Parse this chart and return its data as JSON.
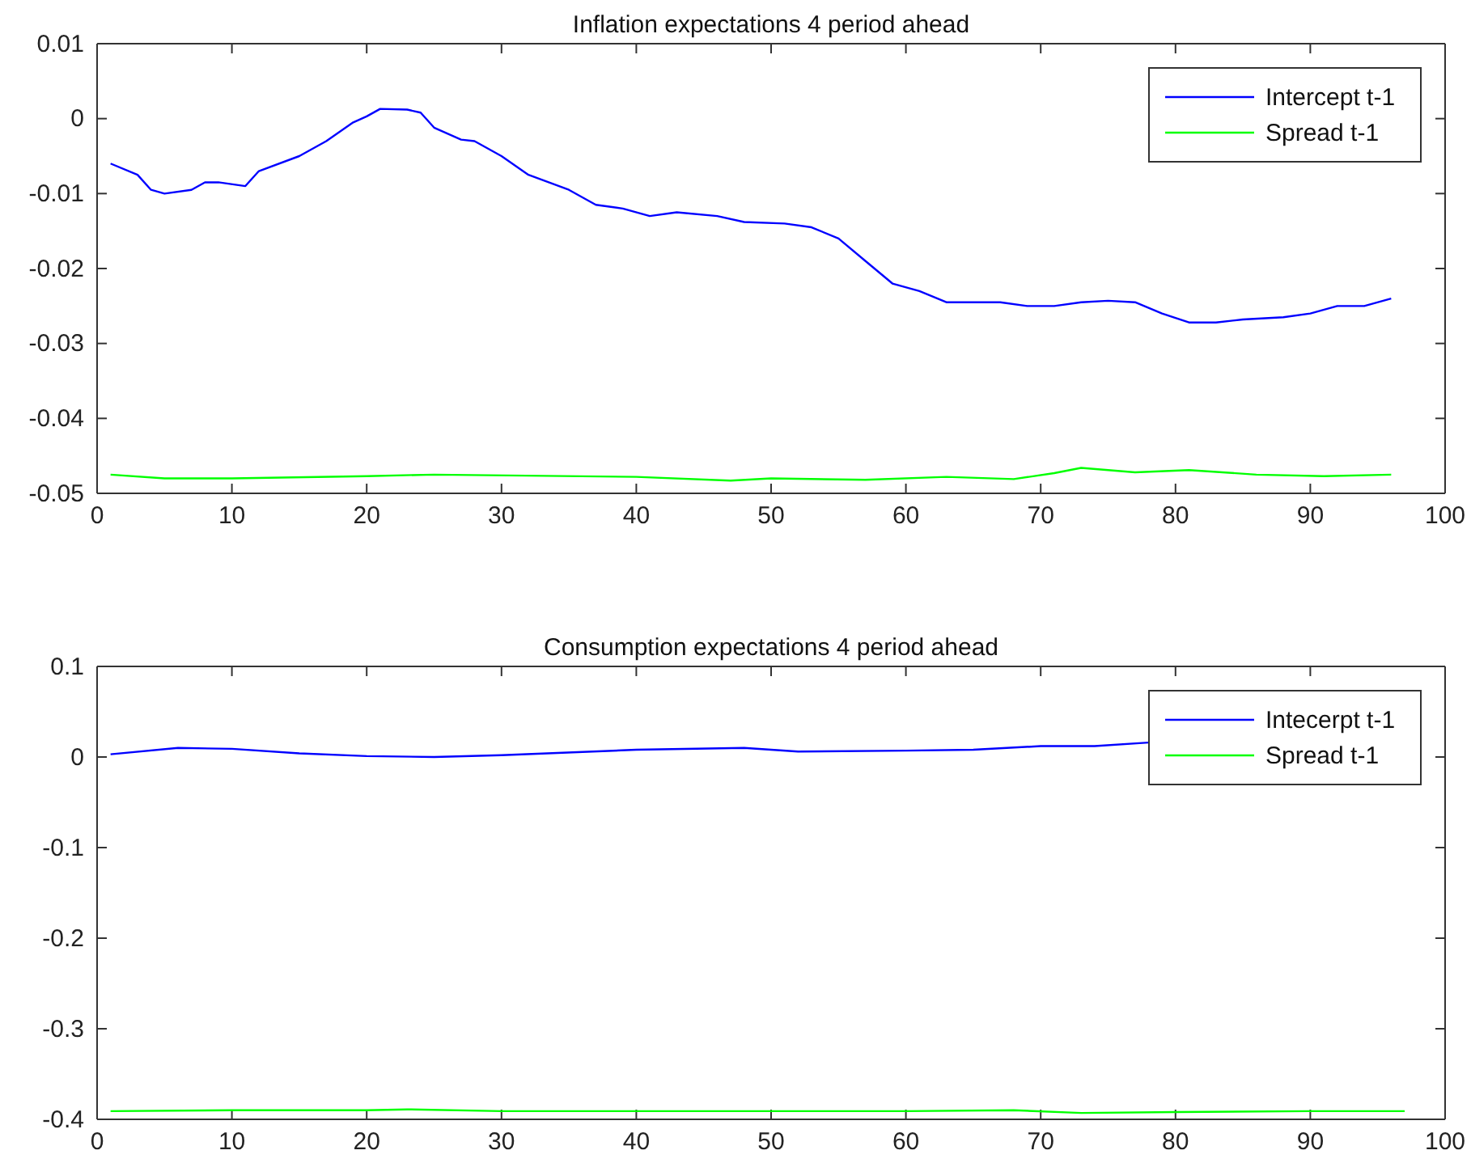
{
  "chart_data": [
    {
      "type": "line",
      "title": "Inflation expectations 4 period ahead",
      "xlim": [
        0,
        100
      ],
      "xticks": [
        0,
        10,
        20,
        30,
        40,
        50,
        60,
        70,
        80,
        90,
        100
      ],
      "ylim": [
        -0.05,
        0.01
      ],
      "yticks": [
        -0.05,
        -0.04,
        -0.03,
        -0.02,
        -0.01,
        0,
        0.01
      ],
      "legend": "top right",
      "grid": false,
      "series": [
        {
          "name": "Intercept t-1",
          "color": "#0000ff",
          "x": [
            1,
            3,
            4,
            5,
            7,
            8,
            9,
            11,
            12,
            15,
            17,
            19,
            20,
            21,
            23,
            24,
            25,
            27,
            28,
            30,
            32,
            35,
            37,
            39,
            41,
            43,
            46,
            48,
            51,
            53,
            55,
            57,
            59,
            61,
            63,
            67,
            69,
            71,
            73,
            75,
            77,
            79,
            81,
            83,
            85,
            88,
            90,
            92,
            94,
            96
          ],
          "values": [
            -0.006,
            -0.0075,
            -0.0095,
            -0.01,
            -0.0095,
            -0.0085,
            -0.0085,
            -0.009,
            -0.007,
            -0.005,
            -0.003,
            -0.0005,
            0.0003,
            0.0013,
            0.0012,
            0.0008,
            -0.0012,
            -0.0028,
            -0.003,
            -0.005,
            -0.0075,
            -0.0095,
            -0.0115,
            -0.012,
            -0.013,
            -0.0125,
            -0.013,
            -0.0138,
            -0.014,
            -0.0145,
            -0.016,
            -0.019,
            -0.022,
            -0.023,
            -0.0245,
            -0.0245,
            -0.025,
            -0.025,
            -0.0245,
            -0.0243,
            -0.0245,
            -0.026,
            -0.0272,
            -0.0272,
            -0.0268,
            -0.0265,
            -0.026,
            -0.025,
            -0.025,
            -0.024
          ]
        },
        {
          "name": "Spread t-1",
          "color": "#00ff00",
          "x": [
            1,
            5,
            10,
            20,
            25,
            40,
            47,
            50,
            57,
            63,
            68,
            71,
            73,
            77,
            81,
            86,
            91,
            96
          ],
          "values": [
            -0.0475,
            -0.048,
            -0.048,
            -0.0477,
            -0.0475,
            -0.0478,
            -0.0483,
            -0.048,
            -0.0482,
            -0.0478,
            -0.0481,
            -0.0473,
            -0.0466,
            -0.0472,
            -0.0469,
            -0.0475,
            -0.0477,
            -0.0475
          ]
        }
      ]
    },
    {
      "type": "line",
      "title": "Consumption expectations 4 period ahead",
      "xlim": [
        0,
        100
      ],
      "xticks": [
        0,
        10,
        20,
        30,
        40,
        50,
        60,
        70,
        80,
        90,
        100
      ],
      "ylim": [
        -0.4,
        0.1
      ],
      "yticks": [
        -0.4,
        -0.3,
        -0.2,
        -0.1,
        0,
        0.1
      ],
      "legend": "top right",
      "grid": false,
      "series": [
        {
          "name": "Intecerpt t-1",
          "color": "#0000ff",
          "x": [
            1,
            6,
            10,
            15,
            20,
            25,
            30,
            40,
            48,
            52,
            60,
            65,
            70,
            74,
            78
          ],
          "values": [
            0.003,
            0.01,
            0.009,
            0.004,
            0.001,
            0,
            0.002,
            0.008,
            0.01,
            0.006,
            0.007,
            0.008,
            0.012,
            0.012,
            0.016
          ]
        },
        {
          "name": "Spread t-1",
          "color": "#00ff00",
          "x": [
            1,
            10,
            20,
            23,
            30,
            40,
            50,
            60,
            68,
            73,
            80,
            90,
            97
          ],
          "values": [
            -0.391,
            -0.39,
            -0.39,
            -0.389,
            -0.391,
            -0.391,
            -0.391,
            -0.391,
            -0.39,
            -0.393,
            -0.392,
            -0.391,
            -0.391
          ]
        }
      ]
    }
  ]
}
